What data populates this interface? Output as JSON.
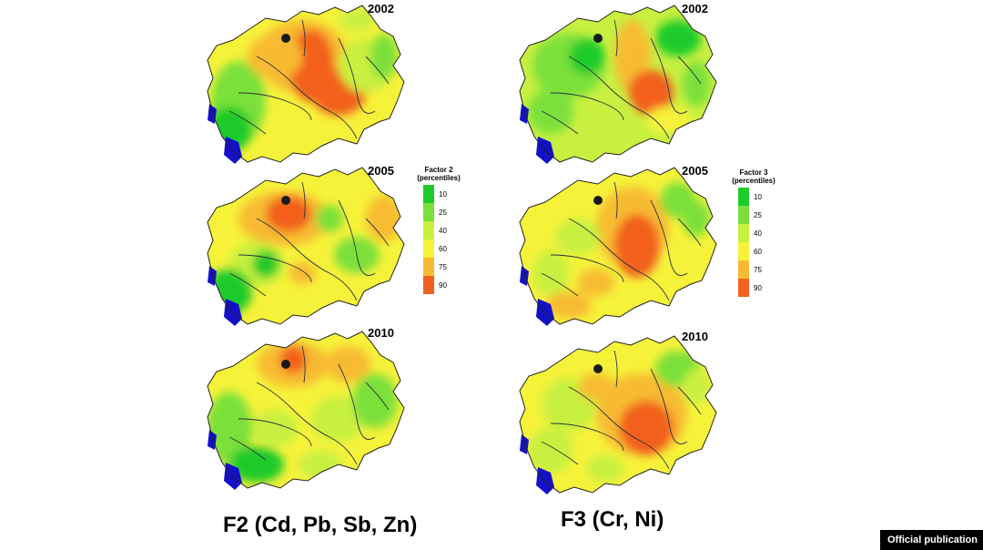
{
  "panels": [
    {
      "factor": "F2",
      "year": "2002",
      "scheme": "f2_2002"
    },
    {
      "factor": "F2",
      "year": "2005",
      "scheme": "f2_2005"
    },
    {
      "factor": "F2",
      "year": "2010",
      "scheme": "f2_2010"
    },
    {
      "factor": "F3",
      "year": "2002",
      "scheme": "f3_2002"
    },
    {
      "factor": "F3",
      "year": "2005",
      "scheme": "f3_2005"
    },
    {
      "factor": "F3",
      "year": "2010",
      "scheme": "f3_2010"
    }
  ],
  "legend_f2": {
    "title_line1": "Factor 2",
    "title_line2": "(percentiles)",
    "ticks": [
      "10",
      "25",
      "40",
      "60",
      "75",
      "90"
    ]
  },
  "legend_f3": {
    "title_line1": "Factor 3",
    "title_line2": "(percentiles)",
    "ticks": [
      "10",
      "25",
      "40",
      "60",
      "75",
      "90"
    ]
  },
  "legend_colors": [
    "#1ecb2a",
    "#7be03a",
    "#c8f040",
    "#f6f23a",
    "#f7bb33",
    "#f2601f"
  ],
  "water_color": "#1410c8",
  "titles": {
    "f2": "F2 (Cd, Pb, Sb, Zn)",
    "f3": "F3 (Cr, Ni)"
  },
  "badge": "Official publication"
}
